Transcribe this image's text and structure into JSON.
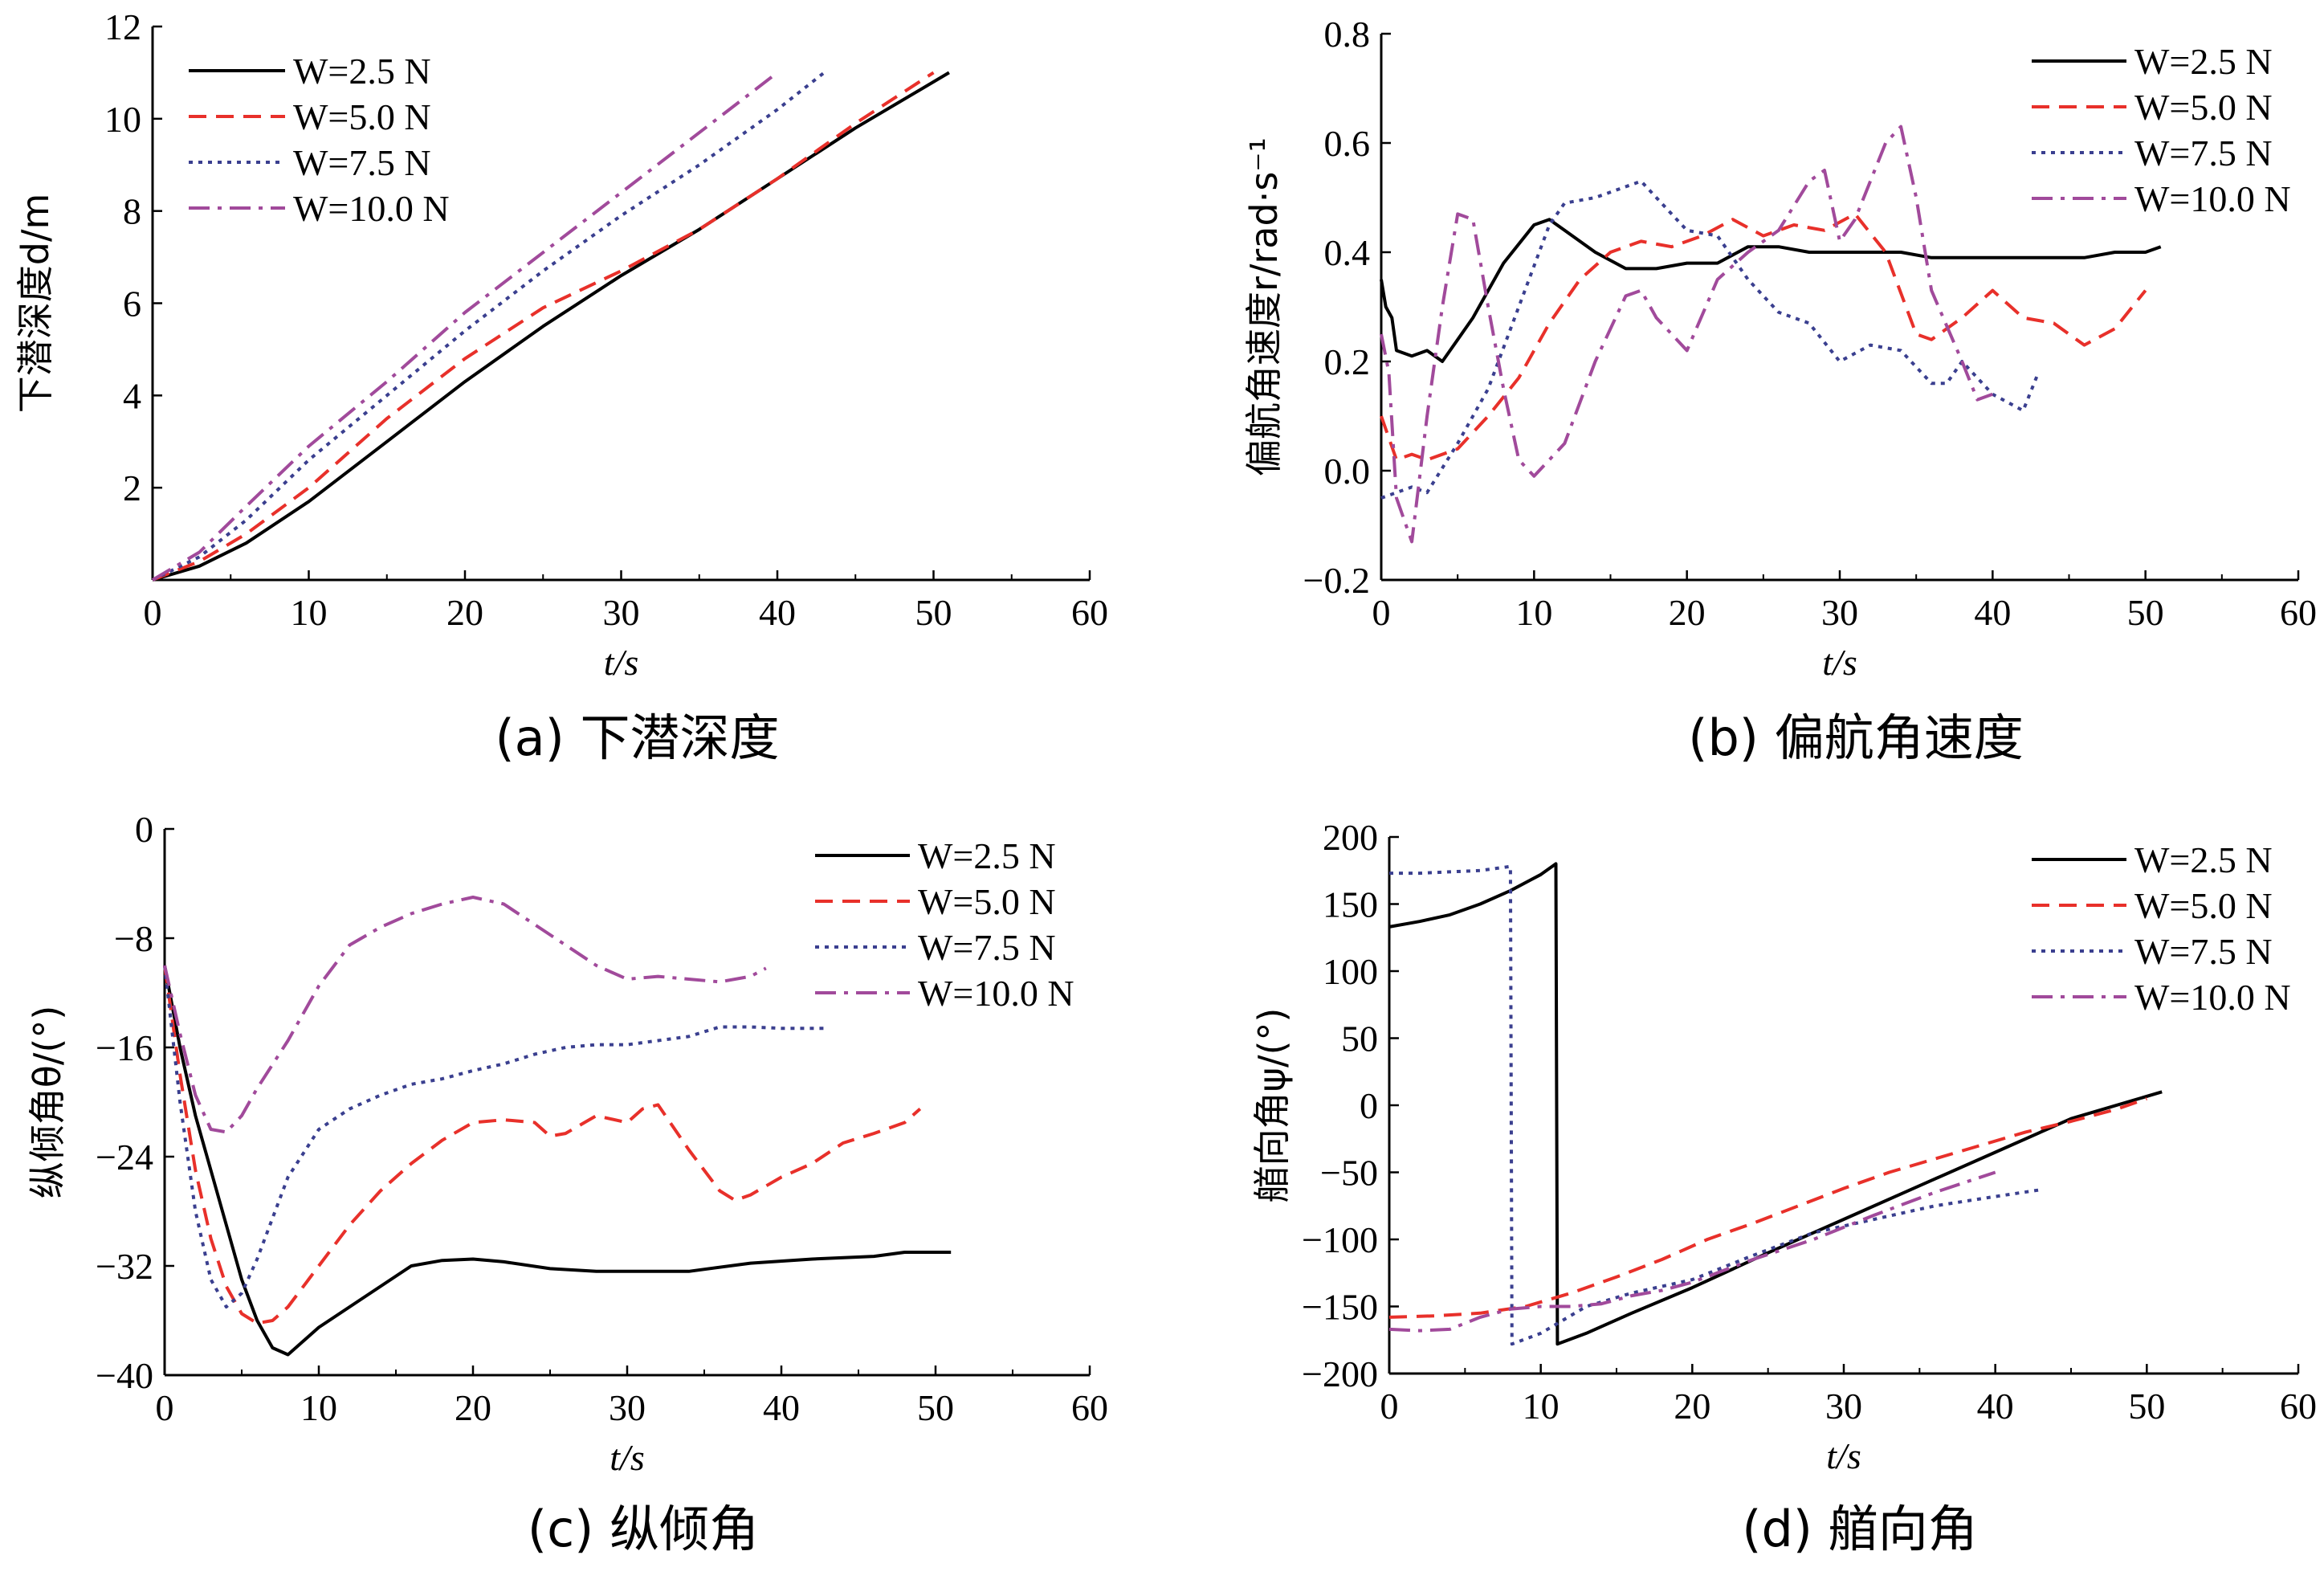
{
  "figure": {
    "legend_labels": [
      "W=2.5 N",
      "W=5.0 N",
      "W=7.5 N",
      "W=10.0 N"
    ],
    "series_styles": [
      {
        "name": "W=2.5 N",
        "color": "#000000",
        "dash": "solid"
      },
      {
        "name": "W=5.0 N",
        "color": "#e8302a",
        "dash": "dashed"
      },
      {
        "name": "W=7.5 N",
        "color": "#3a3f8f",
        "dash": "dotted"
      },
      {
        "name": "W=10.0 N",
        "color": "#a14a9b",
        "dash": "dashdot"
      }
    ]
  },
  "chart_data": [
    {
      "type": "line",
      "caption": "(a) 下潜深度",
      "xlabel": "t/s",
      "ylabel": "下潜深度d/m",
      "xlim": [
        0,
        60
      ],
      "ylim": [
        0,
        12
      ],
      "xticks": [
        "0",
        "10",
        "20",
        "30",
        "40",
        "50",
        "60"
      ],
      "yticks": [
        "2",
        "4",
        "6",
        "8",
        "10",
        "12"
      ],
      "legend_position": "top-left",
      "series": [
        {
          "name": "W=2.5 N",
          "x": [
            0,
            3,
            6,
            10,
            15,
            20,
            25,
            30,
            35,
            40,
            45,
            51
          ],
          "y": [
            0,
            0.3,
            0.8,
            1.7,
            3.0,
            4.3,
            5.5,
            6.6,
            7.6,
            8.7,
            9.8,
            11.0
          ]
        },
        {
          "name": "W=5.0 N",
          "x": [
            0,
            3,
            6,
            10,
            15,
            20,
            25,
            30,
            35,
            40,
            45,
            50
          ],
          "y": [
            0,
            0.4,
            1.0,
            2.0,
            3.5,
            4.8,
            5.9,
            6.7,
            7.6,
            8.7,
            9.9,
            11.0
          ]
        },
        {
          "name": "W=7.5 N",
          "x": [
            0,
            3,
            6,
            10,
            15,
            20,
            25,
            30,
            35,
            40,
            43
          ],
          "y": [
            0,
            0.5,
            1.3,
            2.6,
            4.0,
            5.4,
            6.7,
            7.9,
            9.0,
            10.2,
            11.0
          ]
        },
        {
          "name": "W=10.0 N",
          "x": [
            0,
            3,
            6,
            10,
            15,
            20,
            25,
            30,
            35,
            40
          ],
          "y": [
            0,
            0.6,
            1.6,
            2.9,
            4.3,
            5.8,
            7.1,
            8.4,
            9.7,
            11.0
          ]
        }
      ]
    },
    {
      "type": "line",
      "caption": "(b) 偏航角速度",
      "xlabel": "t/s",
      "ylabel": "偏航角速度r/rad·s⁻¹",
      "xlim": [
        0,
        60
      ],
      "ylim": [
        -0.2,
        0.8
      ],
      "xticks": [
        "0",
        "10",
        "20",
        "30",
        "40",
        "50",
        "60"
      ],
      "yticks": [
        "−0.2",
        "0.0",
        "0.2",
        "0.4",
        "0.6",
        "0.8"
      ],
      "legend_position": "top-right",
      "series": [
        {
          "name": "W=2.5 N",
          "x": [
            0,
            0.3,
            0.7,
            1,
            2,
            3,
            4,
            5,
            6,
            8,
            10,
            11,
            12,
            14,
            16,
            18,
            20,
            22,
            24,
            26,
            28,
            30,
            32,
            34,
            36,
            38,
            40,
            42,
            44,
            46,
            48,
            50,
            51
          ],
          "y": [
            0.35,
            0.3,
            0.28,
            0.22,
            0.21,
            0.22,
            0.2,
            0.24,
            0.28,
            0.38,
            0.45,
            0.46,
            0.44,
            0.4,
            0.37,
            0.37,
            0.38,
            0.38,
            0.41,
            0.41,
            0.4,
            0.4,
            0.4,
            0.4,
            0.39,
            0.39,
            0.39,
            0.39,
            0.39,
            0.39,
            0.4,
            0.4,
            0.41
          ]
        },
        {
          "name": "W=5.0 N",
          "x": [
            0,
            0.5,
            1,
            2,
            3,
            5,
            7,
            9,
            11,
            13,
            15,
            17,
            19,
            21,
            23,
            25,
            27,
            29,
            31,
            33,
            35,
            36,
            38,
            40,
            42,
            44,
            46,
            48,
            50
          ],
          "y": [
            0.1,
            0.06,
            0.02,
            0.03,
            0.02,
            0.04,
            0.1,
            0.17,
            0.27,
            0.35,
            0.4,
            0.42,
            0.41,
            0.43,
            0.46,
            0.43,
            0.45,
            0.44,
            0.47,
            0.4,
            0.25,
            0.24,
            0.28,
            0.33,
            0.28,
            0.27,
            0.23,
            0.26,
            0.33
          ]
        },
        {
          "name": "W=7.5 N",
          "x": [
            0,
            1,
            2,
            3,
            5,
            7,
            9,
            11,
            12,
            14,
            16,
            17,
            18,
            20,
            22,
            24,
            26,
            28,
            30,
            32,
            34,
            36,
            37,
            38,
            40,
            42,
            43
          ],
          "y": [
            -0.05,
            -0.04,
            -0.03,
            -0.04,
            0.05,
            0.15,
            0.3,
            0.45,
            0.49,
            0.5,
            0.52,
            0.53,
            0.5,
            0.44,
            0.43,
            0.35,
            0.29,
            0.27,
            0.2,
            0.23,
            0.22,
            0.16,
            0.16,
            0.2,
            0.14,
            0.11,
            0.18
          ]
        },
        {
          "name": "W=10.0 N",
          "x": [
            0,
            0.5,
            1,
            2,
            3,
            4,
            5,
            6,
            7,
            8,
            9,
            10,
            11,
            12,
            14,
            16,
            17,
            18,
            20,
            22,
            24,
            26,
            28,
            29,
            30,
            31,
            33,
            34,
            35,
            36,
            38,
            39,
            40
          ],
          "y": [
            0.25,
            0.18,
            -0.05,
            -0.13,
            0.1,
            0.3,
            0.47,
            0.46,
            0.3,
            0.15,
            0.02,
            -0.01,
            0.02,
            0.05,
            0.2,
            0.32,
            0.33,
            0.28,
            0.22,
            0.35,
            0.4,
            0.44,
            0.53,
            0.55,
            0.42,
            0.46,
            0.6,
            0.63,
            0.5,
            0.33,
            0.2,
            0.13,
            0.14
          ]
        }
      ]
    },
    {
      "type": "line",
      "caption": "(c) 纵倾角",
      "xlabel": "t/s",
      "ylabel": "纵倾角θ/(°)",
      "xlim": [
        0,
        60
      ],
      "ylim": [
        -40,
        0
      ],
      "xticks": [
        "0",
        "10",
        "20",
        "30",
        "40",
        "50",
        "60"
      ],
      "yticks": [
        "0",
        "−8",
        "−16",
        "−24",
        "−32",
        "−40"
      ],
      "legend_position": "top-right",
      "series": [
        {
          "name": "W=2.5 N",
          "x": [
            0,
            1,
            2,
            3,
            4,
            5,
            6,
            7,
            8,
            9,
            10,
            12,
            14,
            16,
            18,
            20,
            22,
            25,
            28,
            30,
            34,
            38,
            42,
            46,
            48,
            51
          ],
          "y": [
            -10,
            -16,
            -21,
            -25,
            -29,
            -33,
            -36,
            -38,
            -38.5,
            -37.5,
            -36.5,
            -35,
            -33.5,
            -32,
            -31.6,
            -31.5,
            -31.7,
            -32.2,
            -32.4,
            -32.4,
            -32.4,
            -31.8,
            -31.5,
            -31.3,
            -31,
            -31
          ]
        },
        {
          "name": "W=5.0 N",
          "x": [
            0,
            1,
            2,
            3,
            4,
            5,
            6,
            7,
            8,
            10,
            12,
            14,
            16,
            18,
            20,
            22,
            24,
            25,
            26,
            28,
            30,
            31,
            32,
            34,
            36,
            37,
            38,
            40,
            42,
            44,
            46,
            48,
            49
          ],
          "y": [
            -10,
            -18,
            -25,
            -30,
            -33.5,
            -35.5,
            -36.2,
            -36.0,
            -35,
            -32,
            -29,
            -26.5,
            -24.5,
            -22.8,
            -21.5,
            -21.3,
            -21.5,
            -22.5,
            -22.3,
            -21,
            -21.5,
            -20.5,
            -20.2,
            -23.5,
            -26.5,
            -27.2,
            -26.8,
            -25.5,
            -24.5,
            -23,
            -22.3,
            -21.5,
            -20.5
          ]
        },
        {
          "name": "W=7.5 N",
          "x": [
            0,
            1,
            2,
            3,
            4,
            5,
            6,
            7,
            8,
            10,
            12,
            14,
            16,
            18,
            20,
            22,
            24,
            26,
            28,
            30,
            32,
            34,
            36,
            38,
            40,
            42,
            43
          ],
          "y": [
            -10,
            -20,
            -28,
            -33,
            -35,
            -34,
            -31.5,
            -28.5,
            -25.5,
            -22,
            -20.5,
            -19.5,
            -18.7,
            -18.3,
            -17.7,
            -17.2,
            -16.5,
            -16,
            -15.8,
            -15.8,
            -15.5,
            -15.2,
            -14.5,
            -14.5,
            -14.6,
            -14.6,
            -14.6
          ]
        },
        {
          "name": "W=10.0 N",
          "x": [
            0,
            1,
            2,
            3,
            4,
            5,
            6,
            8,
            10,
            12,
            14,
            16,
            18,
            20,
            22,
            24,
            26,
            28,
            30,
            32,
            34,
            36,
            38,
            39
          ],
          "y": [
            -10,
            -15,
            -19.5,
            -22,
            -22.2,
            -21,
            -19,
            -15.5,
            -11.5,
            -8.5,
            -7.2,
            -6.2,
            -5.5,
            -5,
            -5.5,
            -7,
            -8.5,
            -10,
            -11,
            -10.8,
            -11,
            -11.2,
            -10.8,
            -10.2
          ]
        }
      ]
    },
    {
      "type": "line",
      "caption": "(d) 艏向角",
      "xlabel": "t/s",
      "ylabel": "艏向角ψ/(°)",
      "xlim": [
        0,
        60
      ],
      "ylim": [
        -200,
        200
      ],
      "xticks": [
        "0",
        "10",
        "20",
        "30",
        "40",
        "50",
        "60"
      ],
      "yticks": [
        "200",
        "150",
        "100",
        "50",
        "0",
        "−50",
        "−100",
        "−150",
        "−200"
      ],
      "legend_position": "top-right",
      "series": [
        {
          "name": "W=2.5 N",
          "x": [
            0,
            2,
            4,
            6,
            8,
            10,
            11,
            11.1,
            13,
            16,
            20,
            25,
            30,
            35,
            40,
            45,
            51
          ],
          "y": [
            133,
            137,
            142,
            150,
            160,
            172,
            180,
            -178,
            -170,
            -155,
            -136,
            -110,
            -85,
            -60,
            -35,
            -10,
            10
          ]
        },
        {
          "name": "W=5.0 N",
          "x": [
            0,
            3,
            6,
            9,
            12,
            15,
            18,
            21,
            24,
            27,
            30,
            33,
            36,
            39,
            42,
            45,
            48,
            50
          ],
          "y": [
            -158,
            -157,
            -155,
            -150,
            -140,
            -128,
            -115,
            -100,
            -88,
            -75,
            -62,
            -50,
            -40,
            -30,
            -20,
            -12,
            -3,
            5
          ]
        },
        {
          "name": "W=7.5 N",
          "x": [
            0,
            2,
            4,
            6,
            8,
            8.1,
            10,
            13,
            16,
            20,
            24,
            28,
            32,
            36,
            40,
            43
          ],
          "y": [
            173,
            173,
            174,
            175,
            178,
            -178,
            -170,
            -150,
            -140,
            -130,
            -112,
            -95,
            -85,
            -75,
            -68,
            -63
          ]
        },
        {
          "name": "W=10.0 N",
          "x": [
            0,
            2,
            4,
            6,
            8,
            10,
            12,
            14,
            16,
            18,
            20,
            24,
            28,
            32,
            36,
            40
          ],
          "y": [
            -167,
            -168,
            -167,
            -158,
            -152,
            -150,
            -150,
            -148,
            -142,
            -138,
            -132,
            -115,
            -100,
            -82,
            -65,
            -50
          ]
        }
      ]
    }
  ]
}
